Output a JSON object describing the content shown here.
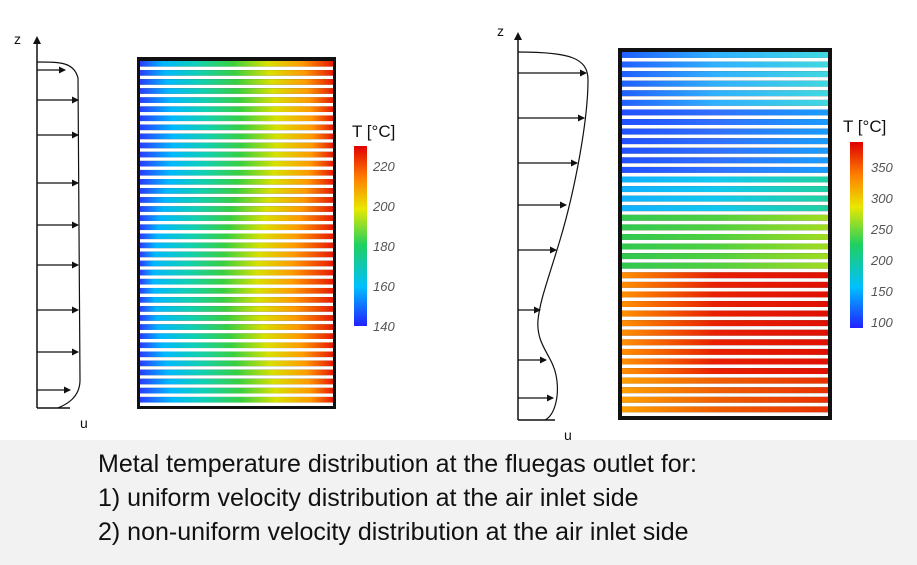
{
  "panel_left": {
    "z_label": "z",
    "u_label": "u",
    "colorbar": {
      "title": "T [°C]",
      "min": 140,
      "max": 230,
      "ticks": [
        "220",
        "200",
        "180",
        "160",
        "140"
      ],
      "tick_values": [
        220,
        200,
        180,
        160,
        140
      ]
    },
    "profile_type": "uniform"
  },
  "panel_right": {
    "z_label": "z",
    "u_label": "u",
    "colorbar": {
      "title": "T [°C]",
      "min": 90,
      "max": 390,
      "ticks": [
        "350",
        "300",
        "250",
        "200",
        "150",
        "100"
      ],
      "tick_values": [
        350,
        300,
        250,
        200,
        150,
        100
      ]
    },
    "profile_type": "non-uniform"
  },
  "caption": {
    "line1": "Metal temperature distribution at the fluegas outlet for:",
    "line2": "1) uniform velocity distribution at the air inlet side",
    "line3": "2) non-uniform velocity distribution at the air inlet side"
  },
  "colors": {
    "colormap": [
      "#2020ff",
      "#00c0ff",
      "#20d060",
      "#e8e800",
      "#ff8000",
      "#e00000"
    ],
    "frame": "#111111",
    "caption_bg": "#f2f2f2"
  }
}
